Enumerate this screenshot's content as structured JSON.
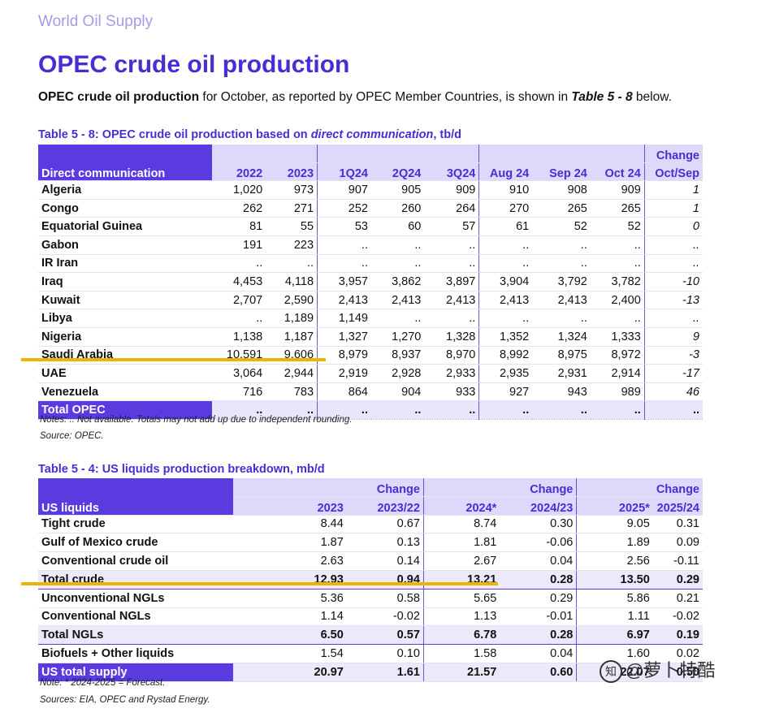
{
  "header": {
    "section": "World Oil Supply",
    "title": "OPEC crude oil production"
  },
  "intro": {
    "bold_lead": "OPEC crude oil production",
    "middle": " for October, as reported by OPEC Member Countries, is shown in ",
    "ref": "Table 5 - 8",
    "tail": " below."
  },
  "table58": {
    "caption_pre": "Table 5 - 8: OPEC crude oil production based on ",
    "caption_ital": "direct communication",
    "caption_post": ", tb/d",
    "first_header": "Direct communication",
    "change_top": "Change",
    "columns": [
      "2022",
      "2023",
      "1Q24",
      "2Q24",
      "3Q24",
      "Aug 24",
      "Sep 24",
      "Oct 24",
      "Oct/Sep"
    ],
    "rows": [
      {
        "country": "Algeria",
        "values": [
          "1,020",
          "973",
          "907",
          "905",
          "909",
          "910",
          "908",
          "909",
          "1"
        ]
      },
      {
        "country": "Congo",
        "values": [
          "262",
          "271",
          "252",
          "260",
          "264",
          "270",
          "265",
          "265",
          "1"
        ]
      },
      {
        "country": "Equatorial Guinea",
        "values": [
          "81",
          "55",
          "53",
          "60",
          "57",
          "61",
          "52",
          "52",
          "0"
        ]
      },
      {
        "country": "Gabon",
        "values": [
          "191",
          "223",
          "..",
          "..",
          "..",
          "..",
          "..",
          "..",
          ".."
        ]
      },
      {
        "country": "IR Iran",
        "values": [
          "..",
          "..",
          "..",
          "..",
          "..",
          "..",
          "..",
          "..",
          ".."
        ]
      },
      {
        "country": "Iraq",
        "values": [
          "4,453",
          "4,118",
          "3,957",
          "3,862",
          "3,897",
          "3,904",
          "3,792",
          "3,782",
          "-10"
        ]
      },
      {
        "country": "Kuwait",
        "values": [
          "2,707",
          "2,590",
          "2,413",
          "2,413",
          "2,413",
          "2,413",
          "2,413",
          "2,400",
          "-13"
        ]
      },
      {
        "country": "Libya",
        "values": [
          "..",
          "1,189",
          "1,149",
          "..",
          "..",
          "..",
          "..",
          "..",
          ".."
        ]
      },
      {
        "country": "Nigeria",
        "values": [
          "1,138",
          "1,187",
          "1,327",
          "1,270",
          "1,328",
          "1,352",
          "1,324",
          "1,333",
          "9"
        ]
      },
      {
        "country": "Saudi Arabia",
        "values": [
          "10,591",
          "9,606",
          "8,979",
          "8,937",
          "8,970",
          "8,992",
          "8,975",
          "8,972",
          "-3"
        ]
      },
      {
        "country": "UAE",
        "values": [
          "3,064",
          "2,944",
          "2,919",
          "2,928",
          "2,933",
          "2,935",
          "2,931",
          "2,914",
          "-17"
        ]
      },
      {
        "country": "Venezuela",
        "values": [
          "716",
          "783",
          "864",
          "904",
          "933",
          "927",
          "943",
          "989",
          "46"
        ]
      }
    ],
    "total": {
      "label": "Total  OPEC",
      "values": [
        "..",
        "..",
        "..",
        "..",
        "..",
        "..",
        "..",
        "..",
        ".."
      ]
    },
    "notes": "Notes:  .. Not available. Totals may not add up due to independent rounding.",
    "source": "Source: OPEC."
  },
  "table54": {
    "caption": "Table 5 - 4: US liquids production breakdown, mb/d",
    "first_header": "US liquids",
    "change_top": "Change",
    "columns": [
      "2023",
      "2023/22",
      "2024*",
      "2024/23",
      "2025*",
      "2025/24"
    ],
    "rows": [
      {
        "label": "Tight crude",
        "values": [
          "8.44",
          "0.67",
          "8.74",
          "0.30",
          "9.05",
          "0.31"
        ],
        "type": "normal"
      },
      {
        "label": "Gulf of Mexico crude",
        "values": [
          "1.87",
          "0.13",
          "1.81",
          "-0.06",
          "1.89",
          "0.09"
        ],
        "type": "normal"
      },
      {
        "label": "Conventional crude oil",
        "values": [
          "2.63",
          "0.14",
          "2.67",
          "0.04",
          "2.56",
          "-0.11"
        ],
        "type": "normal"
      },
      {
        "label": "Total crude",
        "values": [
          "12.93",
          "0.94",
          "13.21",
          "0.28",
          "13.50",
          "0.29"
        ],
        "type": "strong"
      },
      {
        "label": "Unconventional NGLs",
        "values": [
          "5.36",
          "0.58",
          "5.65",
          "0.29",
          "5.86",
          "0.21"
        ],
        "type": "normal"
      },
      {
        "label": "Conventional NGLs",
        "values": [
          "1.14",
          "-0.02",
          "1.13",
          "-0.01",
          "1.11",
          "-0.02"
        ],
        "type": "normal"
      },
      {
        "label": "Total NGLs",
        "values": [
          "6.50",
          "0.57",
          "6.78",
          "0.28",
          "6.97",
          "0.19"
        ],
        "type": "strong"
      },
      {
        "label": "Biofuels + Other liquids",
        "values": [
          "1.54",
          "0.10",
          "1.58",
          "0.04",
          "1.60",
          "0.02"
        ],
        "type": "normal"
      }
    ],
    "total": {
      "label": "US total supply",
      "values": [
        "20.97",
        "1.61",
        "21.57",
        "0.60",
        "22.07",
        "0.50"
      ]
    },
    "note": "Note: * 2024-2025 = Forecast.",
    "sources": "Sources: EIA, OPEC and Rystad Energy."
  },
  "watermark": {
    "icon": "zhihu-icon",
    "text": "@萝卜特酷"
  },
  "colors": {
    "brand": "#4b2bd2",
    "header_dark": "#5a3be0",
    "header_light": "#ddd9fa",
    "highlight": "#f0b400"
  }
}
